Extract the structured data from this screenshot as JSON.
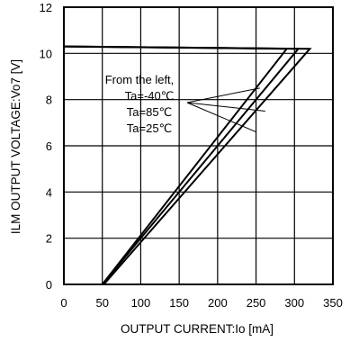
{
  "chart_data": {
    "type": "line",
    "xlabel": "OUTPUT CURRENT:Io [mA]",
    "ylabel": "ILM OUTPUT VOLTAGE:Vo7 [V]",
    "xlim": [
      0,
      350
    ],
    "ylim": [
      0,
      12
    ],
    "xticks": [
      0,
      50,
      100,
      150,
      200,
      250,
      300,
      350
    ],
    "yticks": [
      0,
      2,
      4,
      6,
      8,
      10,
      12
    ],
    "grid": true,
    "series": [
      {
        "x": [
          0,
          290,
          50
        ],
        "y": [
          10.3,
          10.2,
          0
        ]
      },
      {
        "x": [
          0,
          305,
          50
        ],
        "y": [
          10.3,
          10.2,
          0
        ]
      },
      {
        "x": [
          0,
          320,
          52
        ],
        "y": [
          10.3,
          10.2,
          0
        ]
      }
    ],
    "annotation": {
      "lines": [
        "From the left,",
        "Ta=-40℃",
        "Ta=85℃",
        "Ta=25℃"
      ],
      "pointers_to": [
        {
          "x": 255,
          "y": 8.5
        },
        {
          "x": 262,
          "y": 7.5
        },
        {
          "x": 250,
          "y": 6.6
        }
      ]
    }
  }
}
